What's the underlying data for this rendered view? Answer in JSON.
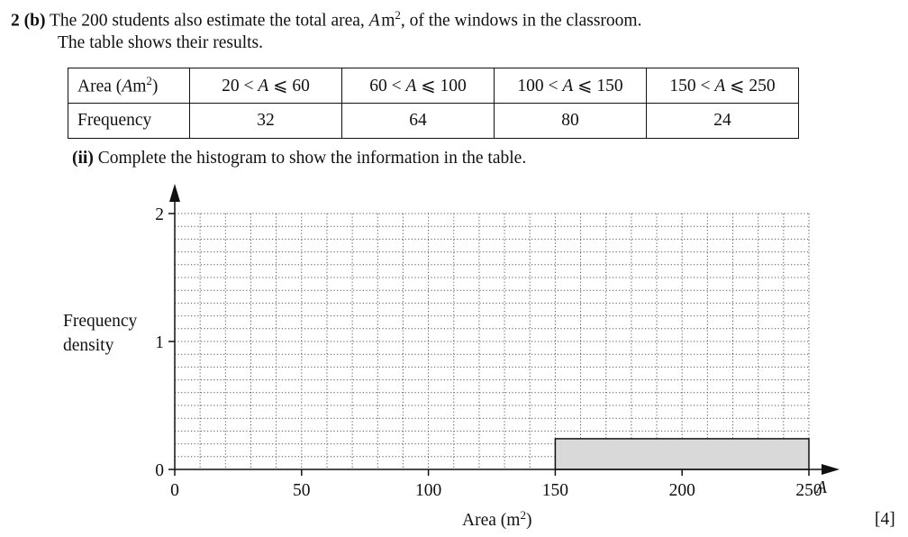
{
  "question": {
    "number": "2",
    "part": "(b)",
    "line1_before_var": "The 200 students also estimate the total area, ",
    "var_symbol": "A",
    "unit": "m",
    "unit_power": "2",
    "line1_after": ", of the windows in the classroom.",
    "line2": "The table shows their results."
  },
  "table": {
    "header_label": "Area (",
    "header_var": "A",
    "header_unit": "m",
    "header_power": "2",
    "header_close": ")",
    "row_label": "Frequency",
    "intervals": [
      {
        "low": "20",
        "high": "60"
      },
      {
        "low": "60",
        "high": "100"
      },
      {
        "low": "100",
        "high": "150"
      },
      {
        "low": "150",
        "high": "250"
      }
    ],
    "lt": "<",
    "le": "⩽",
    "frequencies": [
      "32",
      "64",
      "80",
      "24"
    ]
  },
  "subquestion": {
    "label": "(ii)",
    "text": " Complete the histogram to show the information in the table."
  },
  "marks": "[4]",
  "chart_data": {
    "type": "bar",
    "histogram": true,
    "bins": [
      {
        "from": 150,
        "to": 250,
        "frequency_density": 0.24
      }
    ],
    "bar_fill": "#d9d9d9",
    "xlim": [
      0,
      250
    ],
    "ylim": [
      0,
      2
    ],
    "x_ticks": [
      "0",
      "50",
      "100",
      "150",
      "200",
      "250"
    ],
    "y_ticks": [
      "0",
      "1",
      "2"
    ],
    "x_axis_var": "A",
    "xlabel": "Area (m",
    "xlabel_power": "2",
    "xlabel_close": ")",
    "ylabel_lines": [
      "Frequency",
      "density"
    ],
    "grid": "dotted, 10 m² by 0.1 squares"
  }
}
